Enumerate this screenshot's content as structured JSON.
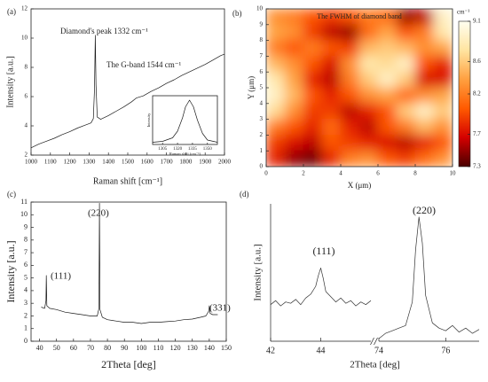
{
  "chart_data": [
    {
      "type": "line",
      "panel": "(a)",
      "xlabel": "Raman shift [cm⁻¹]",
      "ylabel": "Intensity [a.u.]",
      "color": "#1a1a1a",
      "annotations": [
        "Diamond's peak 1332 cm⁻¹",
        "The G-band 1544 cm⁻¹"
      ],
      "x": [
        1000,
        1040,
        1080,
        1120,
        1160,
        1200,
        1240,
        1280,
        1310,
        1322,
        1328,
        1332,
        1336,
        1342,
        1360,
        1400,
        1440,
        1480,
        1520,
        1544,
        1580,
        1620,
        1660,
        1700,
        1740,
        1780,
        1820,
        1860,
        1900,
        1940,
        1980,
        2000
      ],
      "values": [
        2.5,
        2.75,
        2.95,
        3.15,
        3.4,
        3.6,
        3.85,
        4.05,
        4.2,
        4.5,
        6.5,
        10.2,
        6.8,
        4.6,
        4.45,
        4.7,
        5.0,
        5.3,
        5.65,
        5.9,
        6.05,
        6.35,
        6.6,
        6.9,
        7.15,
        7.45,
        7.7,
        7.95,
        8.2,
        8.5,
        8.8,
        8.9
      ],
      "xlim": [
        1000,
        2000
      ],
      "xticks": [
        1000,
        1100,
        1200,
        1300,
        1400,
        1500,
        1600,
        1700,
        1800,
        1900,
        2000
      ],
      "ylim": [
        2,
        12
      ],
      "yticks": [
        2,
        4,
        6,
        8,
        10,
        12
      ],
      "inset": {
        "xlabel": "Raman shift (cm⁻¹)",
        "ylabel": "Intensity",
        "x": [
          1295,
          1305,
          1315,
          1320,
          1325,
          1328,
          1332,
          1336,
          1340,
          1345,
          1350,
          1360
        ],
        "values": [
          0.05,
          0.07,
          0.15,
          0.3,
          0.6,
          0.85,
          1.0,
          0.85,
          0.55,
          0.25,
          0.1,
          0.05
        ],
        "xlim": [
          1295,
          1360
        ],
        "xticks": [
          1305,
          1320,
          1335,
          1350
        ],
        "ylim": [
          0,
          1.1
        ]
      }
    },
    {
      "type": "heatmap",
      "panel": "(b)",
      "title": "The FWHM of diamond band",
      "xlabel": "X (μm)",
      "ylabel": "Y (μm)",
      "xlim": [
        0,
        10
      ],
      "xticks": [
        0,
        2,
        4,
        6,
        8,
        10
      ],
      "ylim": [
        0,
        10
      ],
      "yticks": [
        0,
        1,
        2,
        3,
        4,
        5,
        6,
        7,
        8,
        9,
        10
      ],
      "x": [
        0.5,
        1.5,
        2.5,
        3.5,
        4.5,
        5.5,
        6.5,
        7.5,
        8.5,
        9.5
      ],
      "y": [
        9.5,
        8.5,
        7.5,
        6.5,
        5.5,
        4.5,
        3.5,
        2.5,
        1.5,
        0.5
      ],
      "z": [
        [
          8.3,
          8.2,
          8.0,
          7.9,
          8.0,
          8.2,
          8.1,
          7.5,
          7.6,
          8.9
        ],
        [
          8.4,
          8.3,
          7.9,
          7.6,
          7.5,
          8.1,
          8.4,
          8.0,
          8.2,
          8.8
        ],
        [
          8.2,
          8.0,
          8.2,
          8.0,
          7.9,
          8.5,
          8.6,
          8.5,
          8.3,
          8.4
        ],
        [
          8.5,
          8.3,
          8.0,
          7.7,
          8.3,
          8.8,
          8.7,
          8.9,
          8.0,
          7.8
        ],
        [
          8.8,
          8.4,
          7.8,
          7.6,
          8.2,
          8.6,
          8.9,
          8.6,
          7.7,
          7.7
        ],
        [
          8.9,
          8.5,
          8.0,
          7.8,
          8.0,
          8.3,
          8.4,
          8.1,
          8.3,
          8.4
        ],
        [
          8.7,
          8.3,
          7.9,
          7.9,
          7.6,
          7.8,
          8.0,
          8.6,
          8.9,
          8.6
        ],
        [
          8.2,
          8.0,
          7.8,
          8.1,
          7.8,
          7.6,
          8.0,
          8.2,
          8.5,
          8.3
        ],
        [
          7.9,
          7.7,
          7.6,
          8.0,
          7.9,
          7.8,
          7.7,
          7.6,
          7.8,
          8.0
        ],
        [
          7.8,
          7.5,
          7.4,
          7.8,
          8.2,
          8.3,
          8.0,
          7.9,
          8.1,
          8.3
        ]
      ],
      "colorbar": {
        "label": "cm⁻¹",
        "lim": [
          7.3,
          9.1
        ],
        "ticks": [
          7.3,
          7.7,
          8.2,
          8.6,
          9.1
        ],
        "colors": [
          "#4a0000",
          "#d40000",
          "#ff5a00",
          "#ffa040",
          "#ffe4a0",
          "#fffff0"
        ]
      }
    },
    {
      "type": "line",
      "panel": "(c)",
      "xlabel": "2Theta [deg]",
      "ylabel": "Intensity [a.u.]",
      "color": "#1a1a1a",
      "annotations": [
        "(111)",
        "(220)",
        "(331)"
      ],
      "x": [
        41,
        43,
        43.8,
        44,
        44.3,
        46,
        50,
        55,
        60,
        65,
        70,
        74,
        75,
        75.3,
        75.6,
        77,
        80,
        85,
        90,
        95,
        100,
        105,
        110,
        115,
        120,
        125,
        130,
        135,
        138,
        139.8,
        140,
        140.5,
        142,
        145
      ],
      "values": [
        2.7,
        2.6,
        3.2,
        5.2,
        2.8,
        2.6,
        2.5,
        2.3,
        2.2,
        2.1,
        2.0,
        2.0,
        2.6,
        10.9,
        2.5,
        1.9,
        1.7,
        1.6,
        1.5,
        1.5,
        1.4,
        1.5,
        1.5,
        1.55,
        1.6,
        1.7,
        1.75,
        1.9,
        2.0,
        2.4,
        2.8,
        2.2,
        2.1,
        2.1
      ],
      "xlim": [
        35,
        150
      ],
      "xticks": [
        40,
        50,
        60,
        70,
        80,
        90,
        100,
        110,
        120,
        130,
        140,
        150
      ],
      "ylim": [
        0,
        11
      ],
      "yticks": [
        0,
        1,
        2,
        3,
        4,
        5,
        6,
        7,
        8,
        9,
        10,
        11
      ]
    },
    {
      "type": "broken_line",
      "panel": "(d)",
      "xlabel": "2Theta [deg]",
      "ylabel": "Intensity [a.u.]",
      "color": "#333333",
      "annotations": [
        "(111)",
        "(220)"
      ],
      "ylim": [
        0,
        1.05
      ],
      "segments": [
        {
          "xlim": [
            42,
            46
          ],
          "xticks": [
            42,
            44
          ],
          "x": [
            42,
            42.2,
            42.4,
            42.6,
            42.8,
            43,
            43.2,
            43.4,
            43.6,
            43.8,
            43.9,
            44,
            44.1,
            44.2,
            44.4,
            44.6,
            44.8,
            45,
            45.2,
            45.4,
            45.6,
            45.8,
            46
          ],
          "values": [
            0.28,
            0.31,
            0.27,
            0.3,
            0.29,
            0.32,
            0.28,
            0.33,
            0.36,
            0.42,
            0.5,
            0.56,
            0.48,
            0.38,
            0.34,
            0.3,
            0.33,
            0.29,
            0.31,
            0.27,
            0.3,
            0.28,
            0.31
          ]
        },
        {
          "xlim": [
            74,
            77
          ],
          "xticks": [
            74,
            76
          ],
          "x": [
            74,
            74.2,
            74.4,
            74.6,
            74.8,
            75,
            75.1,
            75.2,
            75.3,
            75.4,
            75.6,
            75.8,
            76,
            76.2,
            76.4,
            76.6,
            76.8,
            77
          ],
          "values": [
            0.02,
            0.06,
            0.08,
            0.1,
            0.12,
            0.3,
            0.7,
            0.95,
            0.75,
            0.35,
            0.14,
            0.1,
            0.08,
            0.12,
            0.07,
            0.1,
            0.06,
            0.09
          ]
        }
      ]
    }
  ]
}
